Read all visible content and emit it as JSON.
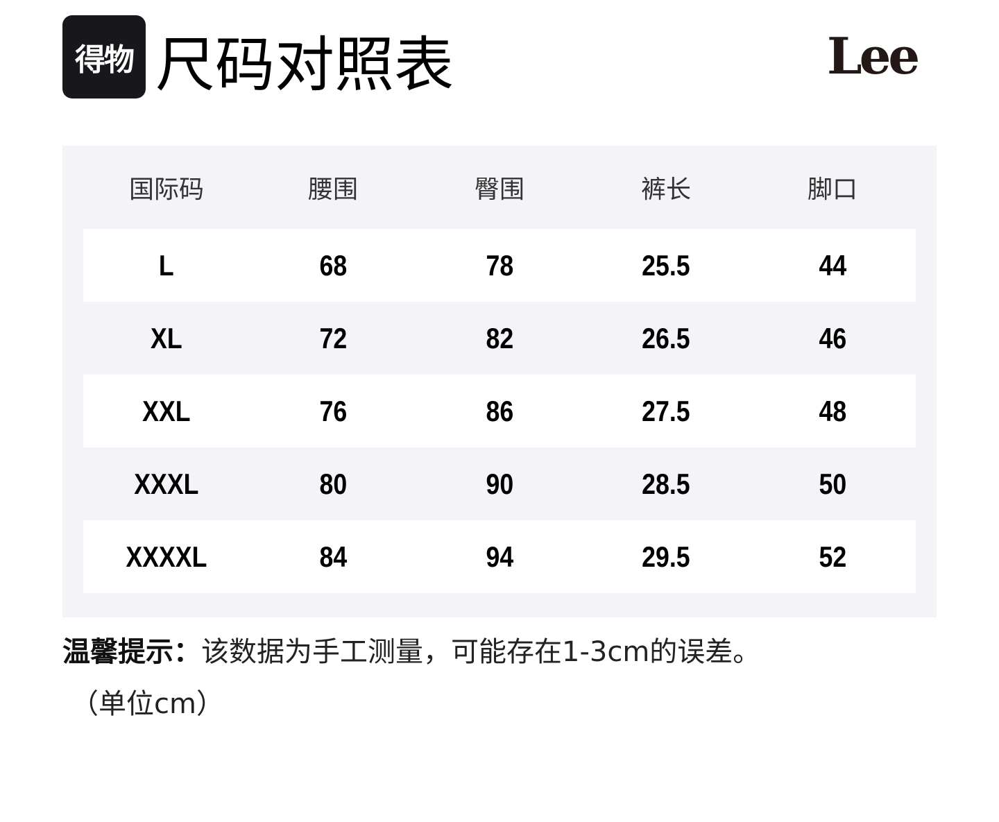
{
  "header": {
    "logo_text": "得物",
    "title": "尺码对照表",
    "brand": "Lee"
  },
  "table": {
    "columns": [
      "国际码",
      "腰围",
      "臀围",
      "裤长",
      "脚口"
    ],
    "rows": [
      [
        "L",
        "68",
        "78",
        "25.5",
        "44"
      ],
      [
        "XL",
        "72",
        "82",
        "26.5",
        "46"
      ],
      [
        "XXL",
        "76",
        "86",
        "27.5",
        "48"
      ],
      [
        "XXXL",
        "80",
        "90",
        "28.5",
        "50"
      ],
      [
        "XXXXL",
        "84",
        "94",
        "29.5",
        "52"
      ]
    ]
  },
  "note": {
    "label": "温馨提示：",
    "text": "该数据为手工测量，可能存在1-3cm的误差。",
    "unit": "（单位cm）"
  }
}
